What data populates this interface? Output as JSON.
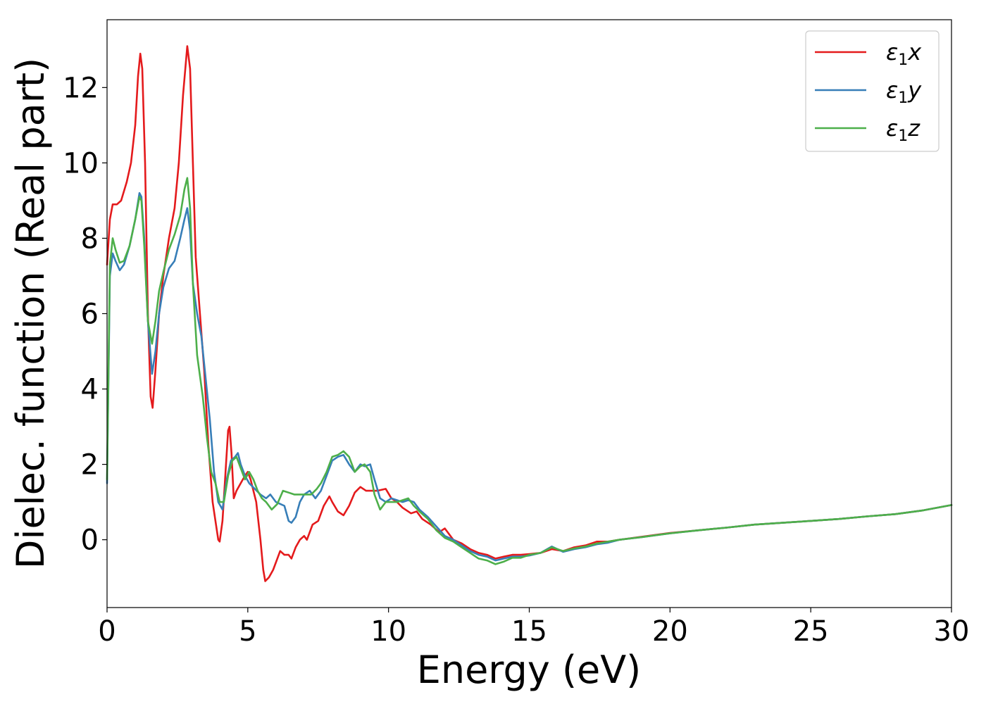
{
  "chart_data": {
    "type": "line",
    "xlabel": "Energy (eV)",
    "ylabel": "Dielec. function (Real part)",
    "xlim": [
      0,
      30
    ],
    "ylim": [
      -1.8,
      13.8
    ],
    "xticks": [
      0,
      5,
      10,
      15,
      20,
      25,
      30
    ],
    "xtick_labels": [
      "0",
      "5",
      "10",
      "15",
      "20",
      "25",
      "30"
    ],
    "yticks": [
      0,
      2,
      4,
      6,
      8,
      10,
      12
    ],
    "ytick_labels": [
      "0",
      "2",
      "4",
      "6",
      "8",
      "10",
      "12"
    ],
    "grid": false,
    "legend_position": "top-right",
    "series": [
      {
        "name": "ε₁x",
        "legend_main": "ε",
        "legend_sub": "1",
        "legend_var": "x",
        "color": "#e41a1c",
        "points": [
          [
            0,
            7.3
          ],
          [
            0.1,
            8.5
          ],
          [
            0.2,
            8.9
          ],
          [
            0.35,
            8.9
          ],
          [
            0.5,
            9.0
          ],
          [
            0.7,
            9.5
          ],
          [
            0.85,
            10.0
          ],
          [
            1.0,
            11.0
          ],
          [
            1.1,
            12.3
          ],
          [
            1.18,
            12.9
          ],
          [
            1.25,
            12.5
          ],
          [
            1.35,
            10.0
          ],
          [
            1.45,
            6.0
          ],
          [
            1.55,
            3.8
          ],
          [
            1.62,
            3.5
          ],
          [
            1.72,
            4.5
          ],
          [
            1.85,
            6.0
          ],
          [
            2.0,
            7.0
          ],
          [
            2.2,
            8.0
          ],
          [
            2.4,
            8.8
          ],
          [
            2.55,
            10.0
          ],
          [
            2.7,
            11.8
          ],
          [
            2.85,
            13.1
          ],
          [
            2.95,
            12.5
          ],
          [
            3.05,
            10.0
          ],
          [
            3.15,
            7.5
          ],
          [
            3.3,
            6.0
          ],
          [
            3.45,
            4.5
          ],
          [
            3.6,
            2.5
          ],
          [
            3.75,
            1.0
          ],
          [
            3.85,
            0.5
          ],
          [
            3.95,
            0.0
          ],
          [
            4.0,
            -0.05
          ],
          [
            4.1,
            0.5
          ],
          [
            4.2,
            1.7
          ],
          [
            4.3,
            2.9
          ],
          [
            4.35,
            3.0
          ],
          [
            4.42,
            2.3
          ],
          [
            4.5,
            1.1
          ],
          [
            4.6,
            1.3
          ],
          [
            4.75,
            1.5
          ],
          [
            4.9,
            1.7
          ],
          [
            5.0,
            1.8
          ],
          [
            5.1,
            1.6
          ],
          [
            5.3,
            1.0
          ],
          [
            5.45,
            0.0
          ],
          [
            5.55,
            -0.8
          ],
          [
            5.62,
            -1.1
          ],
          [
            5.75,
            -1.0
          ],
          [
            5.9,
            -0.8
          ],
          [
            6.05,
            -0.5
          ],
          [
            6.15,
            -0.3
          ],
          [
            6.3,
            -0.4
          ],
          [
            6.45,
            -0.4
          ],
          [
            6.55,
            -0.5
          ],
          [
            6.7,
            -0.2
          ],
          [
            6.85,
            0.0
          ],
          [
            7.0,
            0.1
          ],
          [
            7.1,
            0.0
          ],
          [
            7.3,
            0.4
          ],
          [
            7.5,
            0.5
          ],
          [
            7.7,
            0.9
          ],
          [
            7.9,
            1.15
          ],
          [
            8.0,
            1.0
          ],
          [
            8.2,
            0.75
          ],
          [
            8.4,
            0.65
          ],
          [
            8.6,
            0.9
          ],
          [
            8.8,
            1.25
          ],
          [
            9.0,
            1.4
          ],
          [
            9.2,
            1.3
          ],
          [
            9.4,
            1.3
          ],
          [
            9.6,
            1.3
          ],
          [
            9.9,
            1.35
          ],
          [
            10.1,
            1.1
          ],
          [
            10.3,
            1.0
          ],
          [
            10.5,
            0.85
          ],
          [
            10.8,
            0.7
          ],
          [
            11.0,
            0.75
          ],
          [
            11.2,
            0.55
          ],
          [
            11.5,
            0.4
          ],
          [
            11.8,
            0.2
          ],
          [
            12.0,
            0.3
          ],
          [
            12.3,
            0.0
          ],
          [
            12.6,
            -0.1
          ],
          [
            12.9,
            -0.25
          ],
          [
            13.2,
            -0.35
          ],
          [
            13.5,
            -0.4
          ],
          [
            13.8,
            -0.5
          ],
          [
            14.1,
            -0.45
          ],
          [
            14.4,
            -0.4
          ],
          [
            14.7,
            -0.4
          ],
          [
            15.0,
            -0.38
          ],
          [
            15.4,
            -0.35
          ],
          [
            15.8,
            -0.25
          ],
          [
            16.2,
            -0.3
          ],
          [
            16.6,
            -0.2
          ],
          [
            17.0,
            -0.15
          ],
          [
            17.4,
            -0.05
          ],
          [
            17.8,
            -0.05
          ],
          [
            18.2,
            0.0
          ],
          [
            19.0,
            0.08
          ],
          [
            20.0,
            0.18
          ],
          [
            21.0,
            0.25
          ],
          [
            22.0,
            0.32
          ],
          [
            23.0,
            0.4
          ],
          [
            24.0,
            0.45
          ],
          [
            25.0,
            0.5
          ],
          [
            26.0,
            0.55
          ],
          [
            27.0,
            0.62
          ],
          [
            28.0,
            0.68
          ],
          [
            29.0,
            0.78
          ],
          [
            30.0,
            0.92
          ]
        ]
      },
      {
        "name": "ε₁y",
        "legend_main": "ε",
        "legend_sub": "1",
        "legend_var": "y",
        "color": "#377eb8",
        "points": [
          [
            0,
            1.5
          ],
          [
            0.1,
            7.0
          ],
          [
            0.2,
            7.6
          ],
          [
            0.3,
            7.4
          ],
          [
            0.45,
            7.15
          ],
          [
            0.6,
            7.3
          ],
          [
            0.8,
            7.8
          ],
          [
            1.0,
            8.5
          ],
          [
            1.15,
            9.2
          ],
          [
            1.22,
            9.1
          ],
          [
            1.32,
            8.0
          ],
          [
            1.45,
            5.8
          ],
          [
            1.6,
            4.4
          ],
          [
            1.72,
            5.0
          ],
          [
            1.85,
            6.0
          ],
          [
            2.0,
            6.7
          ],
          [
            2.2,
            7.2
          ],
          [
            2.4,
            7.4
          ],
          [
            2.6,
            8.0
          ],
          [
            2.75,
            8.5
          ],
          [
            2.85,
            8.8
          ],
          [
            2.95,
            8.2
          ],
          [
            3.05,
            6.8
          ],
          [
            3.2,
            6.0
          ],
          [
            3.35,
            5.4
          ],
          [
            3.5,
            4.3
          ],
          [
            3.65,
            3.2
          ],
          [
            3.8,
            1.8
          ],
          [
            3.95,
            1.0
          ],
          [
            4.1,
            0.8
          ],
          [
            4.25,
            1.6
          ],
          [
            4.4,
            2.1
          ],
          [
            4.55,
            2.2
          ],
          [
            4.65,
            2.3
          ],
          [
            4.75,
            2.0
          ],
          [
            4.9,
            1.7
          ],
          [
            5.05,
            1.5
          ],
          [
            5.25,
            1.35
          ],
          [
            5.45,
            1.2
          ],
          [
            5.65,
            1.1
          ],
          [
            5.8,
            1.2
          ],
          [
            6.0,
            1.0
          ],
          [
            6.15,
            0.95
          ],
          [
            6.3,
            0.9
          ],
          [
            6.45,
            0.5
          ],
          [
            6.55,
            0.45
          ],
          [
            6.7,
            0.6
          ],
          [
            6.85,
            1.0
          ],
          [
            7.0,
            1.2
          ],
          [
            7.2,
            1.3
          ],
          [
            7.4,
            1.1
          ],
          [
            7.6,
            1.3
          ],
          [
            7.8,
            1.7
          ],
          [
            8.0,
            2.1
          ],
          [
            8.2,
            2.2
          ],
          [
            8.4,
            2.25
          ],
          [
            8.6,
            2.0
          ],
          [
            8.8,
            1.8
          ],
          [
            9.0,
            2.0
          ],
          [
            9.15,
            1.95
          ],
          [
            9.35,
            2.0
          ],
          [
            9.5,
            1.6
          ],
          [
            9.7,
            1.1
          ],
          [
            9.9,
            1.0
          ],
          [
            10.1,
            1.1
          ],
          [
            10.3,
            1.05
          ],
          [
            10.5,
            1.0
          ],
          [
            10.7,
            1.05
          ],
          [
            10.9,
            1.0
          ],
          [
            11.1,
            0.8
          ],
          [
            11.4,
            0.6
          ],
          [
            11.7,
            0.35
          ],
          [
            12.0,
            0.1
          ],
          [
            12.3,
            0.0
          ],
          [
            12.6,
            -0.15
          ],
          [
            12.9,
            -0.3
          ],
          [
            13.2,
            -0.4
          ],
          [
            13.5,
            -0.45
          ],
          [
            13.8,
            -0.55
          ],
          [
            14.1,
            -0.5
          ],
          [
            14.4,
            -0.45
          ],
          [
            14.7,
            -0.45
          ],
          [
            15.0,
            -0.42
          ],
          [
            15.4,
            -0.35
          ],
          [
            15.8,
            -0.18
          ],
          [
            16.2,
            -0.32
          ],
          [
            16.6,
            -0.25
          ],
          [
            17.0,
            -0.2
          ],
          [
            17.4,
            -0.12
          ],
          [
            17.8,
            -0.08
          ],
          [
            18.2,
            0.0
          ],
          [
            19.0,
            0.07
          ],
          [
            20.0,
            0.17
          ],
          [
            21.0,
            0.25
          ],
          [
            22.0,
            0.32
          ],
          [
            23.0,
            0.4
          ],
          [
            24.0,
            0.45
          ],
          [
            25.0,
            0.5
          ],
          [
            26.0,
            0.55
          ],
          [
            27.0,
            0.62
          ],
          [
            28.0,
            0.68
          ],
          [
            29.0,
            0.78
          ],
          [
            30.0,
            0.92
          ]
        ]
      },
      {
        "name": "ε₁z",
        "legend_main": "ε",
        "legend_sub": "1",
        "legend_var": "z",
        "color": "#4daf4a",
        "points": [
          [
            0,
            1.6
          ],
          [
            0.1,
            7.3
          ],
          [
            0.2,
            8.0
          ],
          [
            0.3,
            7.7
          ],
          [
            0.45,
            7.35
          ],
          [
            0.6,
            7.4
          ],
          [
            0.8,
            7.8
          ],
          [
            1.0,
            8.5
          ],
          [
            1.15,
            9.1
          ],
          [
            1.22,
            9.0
          ],
          [
            1.32,
            7.8
          ],
          [
            1.45,
            5.8
          ],
          [
            1.6,
            5.2
          ],
          [
            1.72,
            5.8
          ],
          [
            1.85,
            6.6
          ],
          [
            2.0,
            7.1
          ],
          [
            2.2,
            7.7
          ],
          [
            2.4,
            8.1
          ],
          [
            2.6,
            8.6
          ],
          [
            2.75,
            9.3
          ],
          [
            2.85,
            9.6
          ],
          [
            2.95,
            8.8
          ],
          [
            3.05,
            6.8
          ],
          [
            3.2,
            4.9
          ],
          [
            3.4,
            3.8
          ],
          [
            3.55,
            2.7
          ],
          [
            3.7,
            1.8
          ],
          [
            3.85,
            1.5
          ],
          [
            4.0,
            1.0
          ],
          [
            4.15,
            1.0
          ],
          [
            4.3,
            1.7
          ],
          [
            4.45,
            2.1
          ],
          [
            4.6,
            2.2
          ],
          [
            4.75,
            1.9
          ],
          [
            4.9,
            1.6
          ],
          [
            5.05,
            1.8
          ],
          [
            5.2,
            1.6
          ],
          [
            5.35,
            1.3
          ],
          [
            5.5,
            1.1
          ],
          [
            5.65,
            1.0
          ],
          [
            5.85,
            0.8
          ],
          [
            6.05,
            0.95
          ],
          [
            6.25,
            1.3
          ],
          [
            6.45,
            1.25
          ],
          [
            6.65,
            1.2
          ],
          [
            6.85,
            1.2
          ],
          [
            7.05,
            1.2
          ],
          [
            7.25,
            1.2
          ],
          [
            7.45,
            1.35
          ],
          [
            7.6,
            1.5
          ],
          [
            7.8,
            1.8
          ],
          [
            8.0,
            2.2
          ],
          [
            8.2,
            2.25
          ],
          [
            8.4,
            2.35
          ],
          [
            8.6,
            2.2
          ],
          [
            8.8,
            1.8
          ],
          [
            9.0,
            1.95
          ],
          [
            9.15,
            2.0
          ],
          [
            9.35,
            1.8
          ],
          [
            9.5,
            1.2
          ],
          [
            9.7,
            0.8
          ],
          [
            9.9,
            1.0
          ],
          [
            10.1,
            1.0
          ],
          [
            10.3,
            1.0
          ],
          [
            10.5,
            1.05
          ],
          [
            10.7,
            1.1
          ],
          [
            10.9,
            0.9
          ],
          [
            11.1,
            0.75
          ],
          [
            11.4,
            0.55
          ],
          [
            11.7,
            0.25
          ],
          [
            12.0,
            0.05
          ],
          [
            12.3,
            -0.05
          ],
          [
            12.6,
            -0.2
          ],
          [
            12.9,
            -0.35
          ],
          [
            13.2,
            -0.5
          ],
          [
            13.5,
            -0.55
          ],
          [
            13.8,
            -0.65
          ],
          [
            14.1,
            -0.58
          ],
          [
            14.4,
            -0.48
          ],
          [
            14.7,
            -0.48
          ],
          [
            15.0,
            -0.4
          ],
          [
            15.4,
            -0.35
          ],
          [
            15.8,
            -0.2
          ],
          [
            16.2,
            -0.3
          ],
          [
            16.6,
            -0.23
          ],
          [
            17.0,
            -0.18
          ],
          [
            17.4,
            -0.1
          ],
          [
            17.8,
            -0.05
          ],
          [
            18.2,
            0.0
          ],
          [
            19.0,
            0.07
          ],
          [
            20.0,
            0.17
          ],
          [
            21.0,
            0.25
          ],
          [
            22.0,
            0.32
          ],
          [
            23.0,
            0.4
          ],
          [
            24.0,
            0.45
          ],
          [
            25.0,
            0.5
          ],
          [
            26.0,
            0.55
          ],
          [
            27.0,
            0.62
          ],
          [
            28.0,
            0.68
          ],
          [
            29.0,
            0.78
          ],
          [
            30.0,
            0.92
          ]
        ]
      }
    ]
  }
}
